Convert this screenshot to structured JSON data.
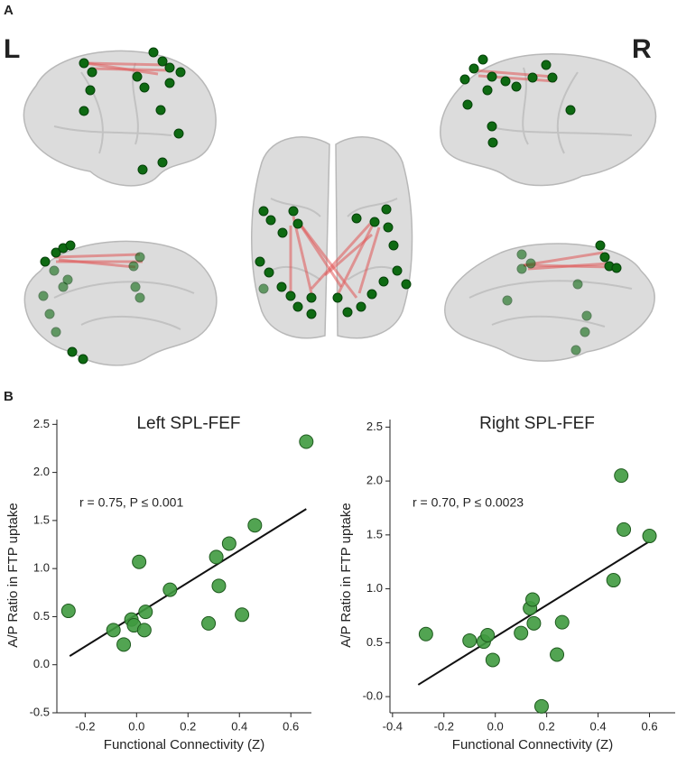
{
  "figure": {
    "panel_a": "A",
    "panel_b": "B",
    "left_hemisphere": "L",
    "right_hemisphere": "R"
  },
  "chart_data": [
    {
      "type": "scatter",
      "title": "Left SPL-FEF",
      "xlabel": "Functional Connectivity (Z)",
      "ylabel": "A/P Ratio in FTP uptake",
      "annotation": "r = 0.75, P ≤ 0.001",
      "xlim": [
        -0.31,
        0.68
      ],
      "ylim": [
        -0.5,
        2.55
      ],
      "xticks": [
        -0.2,
        {
          "value": 0,
          "label": "0.0"
        },
        0.2,
        0.4,
        0.6
      ],
      "yticks": [
        -0.5,
        {
          "value": 0,
          "label": "0.0"
        },
        0.5,
        {
          "value": 1,
          "label": "1.0"
        },
        1.5,
        {
          "value": 2,
          "label": "2.0"
        },
        2.5
      ],
      "color": "#3f9a3f",
      "x": [
        -0.265,
        -0.09,
        -0.05,
        -0.02,
        -0.01,
        0.01,
        0.03,
        0.035,
        0.13,
        0.28,
        0.31,
        0.32,
        0.36,
        0.41,
        0.46,
        0.66
      ],
      "values": [
        0.56,
        0.36,
        0.21,
        0.47,
        0.41,
        1.07,
        0.36,
        0.55,
        0.78,
        0.43,
        1.12,
        0.82,
        1.26,
        0.52,
        1.45,
        2.32
      ],
      "trend": {
        "x": [
          -0.26,
          0.66
        ],
        "values": [
          0.09,
          1.62
        ],
        "color": "#111111"
      }
    },
    {
      "type": "scatter",
      "title": "Right SPL-FEF",
      "xlabel": "Functional Connectivity (Z)",
      "ylabel": "A/P Ratio in FTP uptake",
      "annotation": "r = 0.70, P ≤ 0.0023",
      "xlim": [
        -0.41,
        0.7
      ],
      "ylim": [
        -0.15,
        2.57
      ],
      "xticks": [
        -0.4,
        -0.2,
        {
          "value": 0,
          "label": "0.0"
        },
        0.2,
        0.4,
        0.6
      ],
      "yticks": [
        {
          "value": 0,
          "label": "-0.0"
        },
        0.5,
        {
          "value": 1,
          "label": "1.0"
        },
        1.5,
        {
          "value": 2,
          "label": "2.0"
        },
        2.5
      ],
      "color": "#3f9a3f",
      "x": [
        -0.27,
        -0.1,
        -0.045,
        -0.03,
        -0.01,
        0.1,
        0.135,
        0.145,
        0.15,
        0.18,
        0.24,
        0.26,
        0.46,
        0.49,
        0.5,
        0.6
      ],
      "values": [
        0.58,
        0.52,
        0.51,
        0.57,
        0.34,
        0.59,
        0.82,
        0.9,
        0.68,
        -0.09,
        0.39,
        0.69,
        1.08,
        2.05,
        1.55,
        1.49
      ],
      "trend": {
        "x": [
          -0.3,
          0.6
        ],
        "values": [
          0.11,
          1.44
        ],
        "color": "#111111"
      }
    }
  ]
}
